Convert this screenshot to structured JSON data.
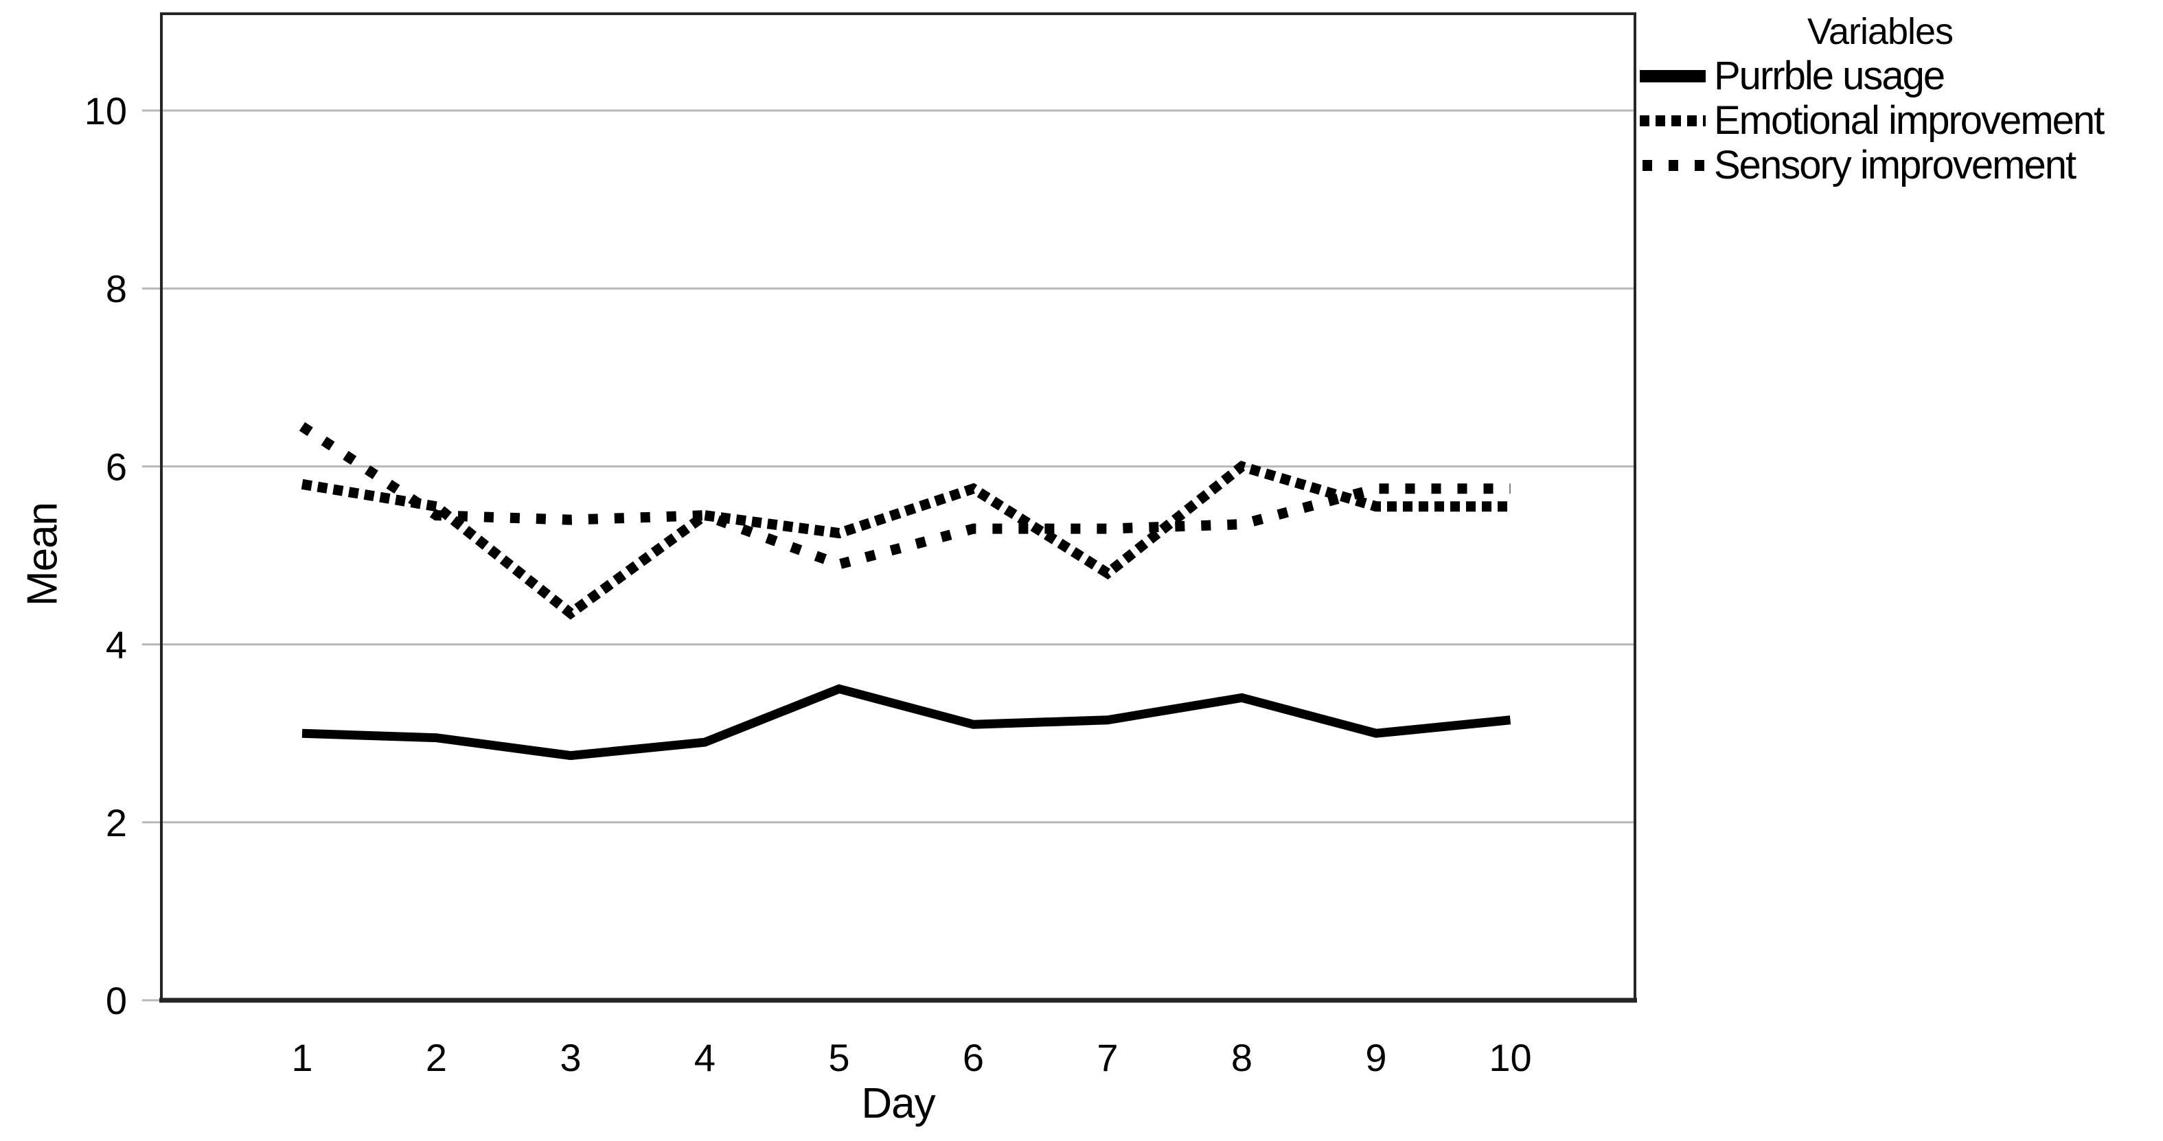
{
  "chart_data": {
    "type": "line",
    "title": "",
    "xlabel": "Day",
    "ylabel": "Mean",
    "legend_title": "Variables",
    "legend_position": "top-right-outside",
    "x": [
      1,
      2,
      3,
      4,
      5,
      6,
      7,
      8,
      9,
      10
    ],
    "x_tick_labels": [
      "1",
      "2",
      "3",
      "4",
      "5",
      "6",
      "7",
      "8",
      "9",
      "10"
    ],
    "y_ticks": [
      0,
      2,
      4,
      6,
      8,
      10
    ],
    "y_tick_labels": [
      "0",
      "2",
      "4",
      "6",
      "8",
      "10"
    ],
    "ylim": [
      0,
      11.1
    ],
    "grid": "horizontal",
    "series": [
      {
        "name": "Purrble usage",
        "style": "solid",
        "color": "#000000",
        "values": [
          3.0,
          2.95,
          2.75,
          2.9,
          3.5,
          3.1,
          3.15,
          3.4,
          3.0,
          3.15
        ]
      },
      {
        "name": "Emotional improvement",
        "style": "dense-dotted",
        "color": "#000000",
        "values": [
          5.8,
          5.55,
          4.35,
          5.45,
          5.25,
          5.75,
          4.8,
          6.0,
          5.55,
          5.55
        ]
      },
      {
        "name": "Sensory improvement",
        "style": "sparse-dotted",
        "color": "#000000",
        "values": [
          6.45,
          5.45,
          5.4,
          5.45,
          4.9,
          5.3,
          5.3,
          5.35,
          5.75,
          5.75
        ]
      }
    ],
    "colors": {
      "background": "#ffffff",
      "frame": "#262626",
      "gridline": "#b8b8b8",
      "line": "#000000",
      "text": "#000000"
    }
  }
}
